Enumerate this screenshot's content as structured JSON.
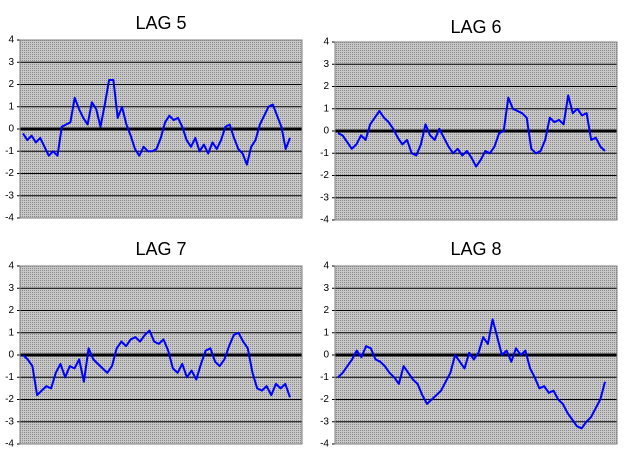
{
  "chart_data": [
    {
      "type": "line",
      "title": "LAG 5",
      "ylim": [
        -4,
        4
      ],
      "yticks": [
        -4,
        -3,
        -2,
        -1,
        0,
        1,
        2,
        3,
        4
      ],
      "grid": true,
      "series": [
        {
          "color": "#0000ff",
          "values": [
            -0.2,
            -0.5,
            -0.3,
            -0.6,
            -0.4,
            -0.8,
            -1.2,
            -1.0,
            -1.2,
            0.1,
            0.2,
            0.3,
            1.4,
            0.9,
            0.5,
            0.2,
            1.2,
            0.9,
            0.1,
            1.1,
            2.2,
            2.2,
            0.5,
            1.0,
            0.2,
            -0.3,
            -0.9,
            -1.2,
            -0.8,
            -1.0,
            -1.0,
            -0.9,
            -0.4,
            0.3,
            0.6,
            0.4,
            0.5,
            0.1,
            -0.5,
            -0.8,
            -0.4,
            -1.0,
            -0.7,
            -1.1,
            -0.6,
            -0.9,
            -0.5,
            0.1,
            0.2,
            -0.4,
            -0.9,
            -1.1,
            -1.6,
            -0.8,
            -0.5,
            0.2,
            0.6,
            1.0,
            1.1,
            0.6,
            0.1,
            -0.9,
            -0.4
          ]
        }
      ]
    },
    {
      "type": "line",
      "title": "LAG 6",
      "ylim": [
        -4,
        4
      ],
      "yticks": [
        -4,
        -3,
        -2,
        -1,
        0,
        1,
        2,
        3,
        4
      ],
      "grid": true,
      "series": [
        {
          "color": "#0000ff",
          "values": [
            -0.1,
            -0.2,
            -0.5,
            -0.8,
            -0.6,
            -0.2,
            -0.4,
            0.3,
            0.6,
            0.9,
            0.6,
            0.4,
            0.1,
            -0.3,
            -0.6,
            -0.4,
            -1.0,
            -1.1,
            -0.6,
            0.3,
            -0.2,
            -0.4,
            0.1,
            -0.3,
            -0.7,
            -1.0,
            -0.8,
            -1.1,
            -0.9,
            -1.2,
            -1.6,
            -1.3,
            -0.9,
            -1.0,
            -0.7,
            -0.1,
            0.0,
            1.5,
            1.0,
            0.9,
            0.8,
            0.6,
            -0.8,
            -1.0,
            -0.9,
            -0.4,
            0.6,
            0.4,
            0.5,
            0.3,
            1.6,
            0.8,
            1.0,
            0.7,
            0.8,
            -0.4,
            -0.3,
            -0.7,
            -0.9
          ]
        }
      ]
    },
    {
      "type": "line",
      "title": "LAG 7",
      "ylim": [
        -4,
        4
      ],
      "yticks": [
        -4,
        -3,
        -2,
        -1,
        0,
        1,
        2,
        3,
        4
      ],
      "grid": true,
      "series": [
        {
          "color": "#0000ff",
          "values": [
            0.0,
            -0.2,
            -0.5,
            -1.8,
            -1.6,
            -1.4,
            -1.5,
            -0.8,
            -0.4,
            -1.0,
            -0.5,
            -0.6,
            -0.2,
            -1.2,
            0.3,
            -0.2,
            -0.4,
            -0.6,
            -0.8,
            -0.5,
            0.3,
            0.6,
            0.4,
            0.7,
            0.8,
            0.6,
            0.9,
            1.1,
            0.6,
            0.5,
            0.7,
            0.2,
            -0.6,
            -0.8,
            -0.4,
            -1.0,
            -0.7,
            -1.1,
            -0.4,
            0.2,
            0.3,
            -0.3,
            -0.5,
            -0.2,
            0.4,
            0.9,
            1.0,
            0.6,
            0.3,
            -0.8,
            -1.5,
            -1.6,
            -1.4,
            -1.8,
            -1.3,
            -1.5,
            -1.3,
            -1.9
          ]
        }
      ]
    },
    {
      "type": "line",
      "title": "LAG 8",
      "ylim": [
        -4,
        4
      ],
      "yticks": [
        -4,
        -3,
        -2,
        -1,
        0,
        1,
        2,
        3,
        4
      ],
      "grid": true,
      "series": [
        {
          "color": "#0000ff",
          "values": [
            -1.0,
            -0.8,
            -0.5,
            -0.2,
            0.2,
            -0.1,
            0.4,
            0.3,
            -0.2,
            -0.3,
            -0.5,
            -0.8,
            -1.0,
            -1.3,
            -0.5,
            -0.8,
            -1.1,
            -1.3,
            -1.8,
            -2.2,
            -2.0,
            -1.8,
            -1.6,
            -1.2,
            -0.8,
            0.0,
            -0.3,
            -0.6,
            0.1,
            -0.2,
            0.1,
            0.8,
            0.5,
            1.6,
            0.8,
            0.0,
            0.2,
            -0.3,
            0.3,
            0.0,
            0.2,
            -0.6,
            -1.0,
            -1.5,
            -1.4,
            -1.7,
            -1.6,
            -2.0,
            -2.2,
            -2.6,
            -2.9,
            -3.2,
            -3.3,
            -3.0,
            -2.8,
            -2.4,
            -2.0,
            -1.2
          ]
        }
      ]
    }
  ]
}
